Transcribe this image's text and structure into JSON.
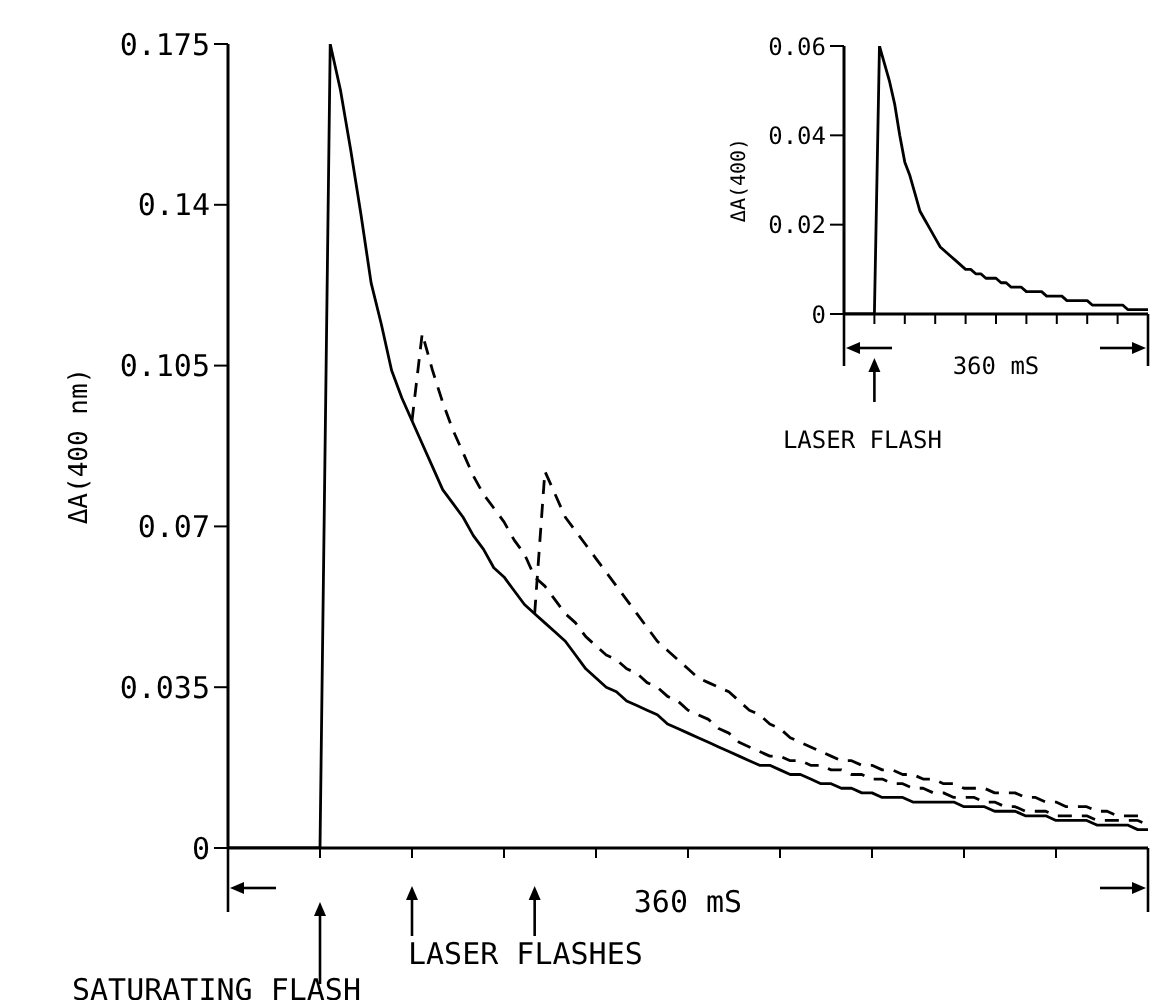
{
  "chart_data": [
    {
      "type": "line",
      "ylabel": "ΔA(400 nm)",
      "ylim": [
        0,
        0.175
      ],
      "yticks": [
        0,
        0.035,
        0.07,
        0.105,
        0.14,
        0.175
      ],
      "tick_labels": "y",
      "annotations": [
        "360 mS",
        "LASER FLASHES",
        "SATURATING FLASH"
      ],
      "categories": [
        null,
        null,
        null,
        null,
        null,
        null,
        null,
        null,
        null,
        null,
        null,
        null,
        null,
        null,
        null,
        null,
        null,
        null,
        null,
        null,
        null,
        null,
        null,
        null,
        null,
        null,
        null,
        null,
        null,
        null,
        null,
        null,
        null,
        null,
        null,
        null,
        null,
        null,
        null,
        null,
        null,
        null,
        null,
        null,
        null,
        null,
        null,
        null,
        null,
        null,
        null,
        null,
        null,
        null,
        null,
        null,
        null,
        null,
        null,
        null,
        null,
        null,
        null,
        null,
        null,
        null,
        null,
        null,
        null,
        null,
        null,
        null,
        null,
        null,
        null,
        null,
        null,
        null,
        null,
        null,
        null,
        null,
        null,
        null,
        null,
        null,
        null,
        null,
        null,
        null,
        null
      ],
      "series": [
        {
          "color": "#000000",
          "line_style": "solid",
          "values": [
            0,
            0,
            0,
            0,
            0,
            0,
            0,
            0,
            0,
            0,
            0.175,
            0.165,
            0.152,
            0.138,
            0.123,
            0.114,
            0.104,
            0.098,
            0.093,
            0.088,
            0.083,
            0.078,
            0.075,
            0.072,
            0.068,
            0.065,
            0.061,
            0.059,
            0.056,
            0.053,
            0.051,
            0.049,
            0.047,
            0.045,
            0.042,
            0.039,
            0.037,
            0.035,
            0.034,
            0.032,
            0.031,
            0.03,
            0.029,
            0.027,
            0.026,
            0.025,
            0.024,
            0.023,
            0.022,
            0.021,
            0.02,
            0.019,
            0.018,
            0.018,
            0.017,
            0.016,
            0.016,
            0.015,
            0.014,
            0.014,
            0.013,
            0.013,
            0.012,
            0.012,
            0.011,
            0.011,
            0.011,
            0.01,
            0.01,
            0.01,
            0.01,
            0.01,
            0.009,
            0.009,
            0.009,
            0.008,
            0.008,
            0.008,
            0.007,
            0.007,
            0.007,
            0.006,
            0.006,
            0.006,
            0.006,
            0.005,
            0.005,
            0.005,
            0.005,
            0.004,
            0.004
          ]
        },
        {
          "color": "#000000",
          "line_style": "dashed",
          "values": [
            null,
            null,
            null,
            null,
            null,
            null,
            null,
            null,
            null,
            null,
            null,
            null,
            null,
            null,
            null,
            null,
            null,
            null,
            0.093,
            0.112,
            0.104,
            0.097,
            0.091,
            0.086,
            0.081,
            0.077,
            0.074,
            0.071,
            0.067,
            0.064,
            0.059,
            0.057,
            0.054,
            0.051,
            0.049,
            0.046,
            0.044,
            0.042,
            0.041,
            0.039,
            0.038,
            0.036,
            0.035,
            0.033,
            0.032,
            0.03,
            0.029,
            0.028,
            0.026,
            0.025,
            0.023,
            0.022,
            0.021,
            0.02,
            0.02,
            0.019,
            0.019,
            0.018,
            0.018,
            0.017,
            0.017,
            0.016,
            0.016,
            0.015,
            0.015,
            0.014,
            0.014,
            0.013,
            0.013,
            0.012,
            0.012,
            0.011,
            0.011,
            0.011,
            0.01,
            0.01,
            0.009,
            0.009,
            0.008,
            0.008,
            0.008,
            0.007,
            0.007,
            0.007,
            0.007,
            0.006,
            0.006,
            0.006,
            0.006,
            0.006,
            0.005
          ]
        },
        {
          "color": "#000000",
          "line_style": "dashed",
          "values": [
            null,
            null,
            null,
            null,
            null,
            null,
            null,
            null,
            null,
            null,
            null,
            null,
            null,
            null,
            null,
            null,
            null,
            null,
            null,
            null,
            null,
            null,
            null,
            null,
            null,
            null,
            null,
            null,
            null,
            null,
            0.051,
            0.082,
            0.077,
            0.072,
            0.069,
            0.066,
            0.063,
            0.06,
            0.057,
            0.054,
            0.051,
            0.048,
            0.045,
            0.043,
            0.041,
            0.039,
            0.037,
            0.036,
            0.035,
            0.034,
            0.032,
            0.03,
            0.029,
            0.027,
            0.026,
            0.024,
            0.023,
            0.022,
            0.021,
            0.02,
            0.019,
            0.019,
            0.018,
            0.018,
            0.017,
            0.017,
            0.016,
            0.016,
            0.015,
            0.015,
            0.014,
            0.014,
            0.013,
            0.013,
            0.013,
            0.012,
            0.012,
            0.012,
            0.011,
            0.011,
            0.01,
            0.01,
            0.009,
            0.009,
            0.009,
            0.008,
            0.008,
            0.007,
            0.007,
            0.007,
            0.007
          ]
        }
      ]
    },
    {
      "type": "line",
      "ylabel": "ΔA(400)",
      "ylim": [
        0,
        0.06
      ],
      "yticks": [
        0,
        0.02,
        0.04,
        0.06
      ],
      "tick_labels": "y",
      "annotations": [
        "360 mS",
        "LASER FLASH"
      ],
      "categories": [
        null,
        null,
        null,
        null,
        null,
        null,
        null,
        null,
        null,
        null,
        null,
        null,
        null,
        null,
        null,
        null,
        null,
        null,
        null,
        null,
        null,
        null,
        null,
        null,
        null,
        null,
        null,
        null,
        null,
        null,
        null,
        null,
        null,
        null,
        null,
        null,
        null,
        null,
        null,
        null,
        null,
        null,
        null,
        null,
        null,
        null,
        null,
        null,
        null,
        null,
        null,
        null,
        null,
        null,
        null,
        null,
        null,
        null,
        null,
        null,
        null
      ],
      "series": [
        {
          "color": "#000000",
          "line_style": "solid",
          "values": [
            0,
            0,
            0,
            0,
            0,
            0,
            0,
            0.06,
            0.056,
            0.052,
            0.047,
            0.04,
            0.034,
            0.031,
            0.027,
            0.023,
            0.021,
            0.019,
            0.017,
            0.015,
            0.014,
            0.013,
            0.012,
            0.011,
            0.01,
            0.01,
            0.009,
            0.009,
            0.008,
            0.008,
            0.008,
            0.007,
            0.007,
            0.006,
            0.006,
            0.006,
            0.005,
            0.005,
            0.005,
            0.005,
            0.004,
            0.004,
            0.004,
            0.004,
            0.003,
            0.003,
            0.003,
            0.003,
            0.003,
            0.002,
            0.002,
            0.002,
            0.002,
            0.002,
            0.002,
            0.002,
            0.001,
            0.001,
            0.001,
            0.001,
            0.001
          ]
        }
      ]
    }
  ]
}
